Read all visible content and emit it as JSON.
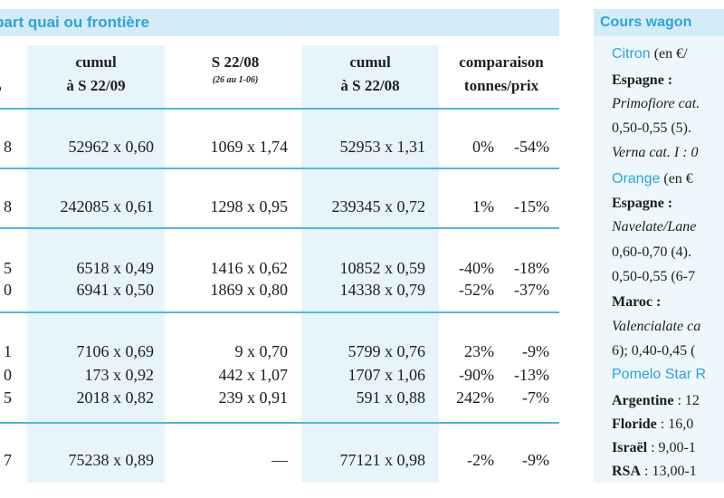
{
  "header": {
    "main_title": "part quai ou frontière",
    "side_title": "Cours wagon"
  },
  "columns": {
    "first_unit": "ø",
    "cumul_2209_line1": "cumul",
    "cumul_2209_line2": "à S 22/09",
    "week_2208_line1": "S 22/08",
    "week_2208_sub": "(26 au 1-06)",
    "cumul_2208_line1": "cumul",
    "cumul_2208_line2": "à S 22/08",
    "compare_line1": "comparaison",
    "compare_line2": "tonnes/prix"
  },
  "rows": [
    {
      "first": "8",
      "cumul09": "52962 x 0,60",
      "week08": "1069 x 1,74",
      "cumul08": "52953 x 1,31",
      "pct_t": "0%",
      "pct_p": "-54%"
    },
    {
      "first": "8",
      "cumul09": "242085 x 0,61",
      "week08": "1298 x 0,95",
      "cumul08": "239345 x 0,72",
      "pct_t": "1%",
      "pct_p": "-15%"
    },
    {
      "first": "5",
      "cumul09": "6518 x 0,49",
      "week08": "1416 x 0,62",
      "cumul08": "10852 x 0,59",
      "pct_t": "-40%",
      "pct_p": "-18%"
    },
    {
      "first": "0",
      "cumul09": "6941 x 0,50",
      "week08": "1869 x 0,80",
      "cumul08": "14338 x 0,79",
      "pct_t": "-52%",
      "pct_p": "-37%"
    },
    {
      "first": "1",
      "cumul09": "7106 x 0,69",
      "week08": "9 x 0,70",
      "cumul08": "5799 x 0,76",
      "pct_t": "23%",
      "pct_p": "-9%"
    },
    {
      "first": "0",
      "cumul09": "173 x 0,92",
      "week08": "442 x 1,07",
      "cumul08": "1707 x 1,06",
      "pct_t": "-90%",
      "pct_p": "-13%"
    },
    {
      "first": "5",
      "cumul09": "2018 x 0,82",
      "week08": "239 x 0,91",
      "cumul08": "591 x 0,88",
      "pct_t": "242%",
      "pct_p": "-7%"
    },
    {
      "first": "7",
      "cumul09": "75238 x 0,89",
      "week08": "—",
      "cumul08": "77121 x 0,98",
      "pct_t": "-2%",
      "pct_p": "-9%"
    }
  ],
  "sidebar": {
    "citron_name": "Citron",
    "citron_unit": "(en €/",
    "espagne1": "Espagne :",
    "primofiore": "Primofiore cat.",
    "price1": "0,50-0,55 (5).",
    "verna": "Verna cat. I : 0",
    "orange_name": "Orange",
    "orange_unit": "(en €",
    "espagne2": "Espagne :",
    "navelate": "Navelate/Lane",
    "price2": "0,60-0,70 (4).",
    "price3": "0,50-0,55 (6-7",
    "maroc": "Maroc :",
    "valencialate": "Valencialate ca",
    "price4": "6); 0,40-0,45 (",
    "pomelo": "Pomelo Star R",
    "argentine_label": "Argentine",
    "argentine_value": " : 12",
    "floride_label": "Floride",
    "floride_value": " : 16,0",
    "israel_label": "Israël",
    "israel_value": " : 9,00-1",
    "rsa_label": "RSA",
    "rsa_value": " : 13,00-1"
  }
}
